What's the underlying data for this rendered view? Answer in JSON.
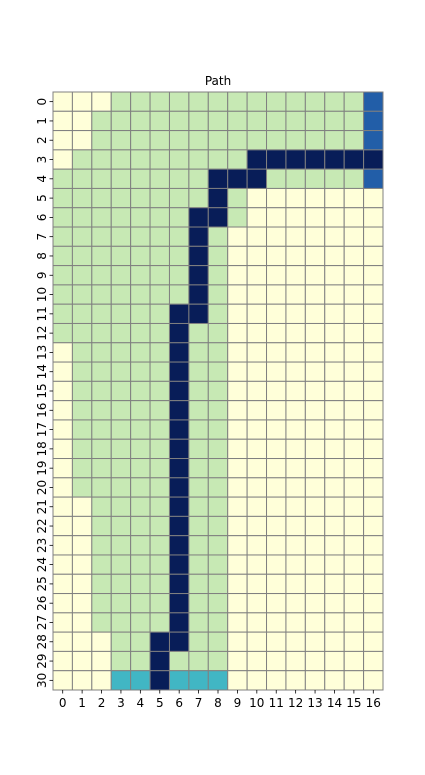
{
  "chart_data": {
    "type": "heatmap",
    "title": "Path",
    "xlabel": "",
    "ylabel": "",
    "x_tick_labels": [
      "0",
      "1",
      "2",
      "3",
      "4",
      "5",
      "6",
      "7",
      "8",
      "9",
      "10",
      "11",
      "12",
      "13",
      "14",
      "15",
      "16"
    ],
    "y_tick_labels": [
      "0",
      "1",
      "2",
      "3",
      "4",
      "5",
      "6",
      "7",
      "8",
      "9",
      "10",
      "11",
      "12",
      "13",
      "14",
      "15",
      "16",
      "17",
      "18",
      "19",
      "20",
      "21",
      "22",
      "23",
      "24",
      "25",
      "26",
      "27",
      "28",
      "29",
      "30"
    ],
    "colormap": "YlGnBu",
    "legend": "none",
    "grid_line_color": "#808080",
    "categories": {
      "0": {
        "meaning": "background",
        "color": "#ffffd9"
      },
      "1": {
        "meaning": "region",
        "color": "#c7e9b4"
      },
      "2": {
        "meaning": "row 30 marker",
        "color": "#41b6c4"
      },
      "3": {
        "meaning": "column 16 marker",
        "color": "#225ea8"
      },
      "4": {
        "meaning": "path",
        "color": "#081d58"
      }
    },
    "values": [
      [
        0,
        0,
        0,
        1,
        1,
        1,
        1,
        1,
        1,
        1,
        1,
        1,
        1,
        1,
        1,
        1,
        3
      ],
      [
        0,
        0,
        1,
        1,
        1,
        1,
        1,
        1,
        1,
        1,
        1,
        1,
        1,
        1,
        1,
        1,
        3
      ],
      [
        0,
        0,
        1,
        1,
        1,
        1,
        1,
        1,
        1,
        1,
        1,
        1,
        1,
        1,
        1,
        1,
        3
      ],
      [
        0,
        1,
        1,
        1,
        1,
        1,
        1,
        1,
        1,
        1,
        4,
        4,
        4,
        4,
        4,
        4,
        4
      ],
      [
        1,
        1,
        1,
        1,
        1,
        1,
        1,
        1,
        4,
        4,
        4,
        1,
        1,
        1,
        1,
        1,
        3
      ],
      [
        1,
        1,
        1,
        1,
        1,
        1,
        1,
        1,
        4,
        1,
        0,
        0,
        0,
        0,
        0,
        0,
        0
      ],
      [
        1,
        1,
        1,
        1,
        1,
        1,
        1,
        4,
        4,
        1,
        0,
        0,
        0,
        0,
        0,
        0,
        0
      ],
      [
        1,
        1,
        1,
        1,
        1,
        1,
        1,
        4,
        1,
        0,
        0,
        0,
        0,
        0,
        0,
        0,
        0
      ],
      [
        1,
        1,
        1,
        1,
        1,
        1,
        1,
        4,
        1,
        0,
        0,
        0,
        0,
        0,
        0,
        0,
        0
      ],
      [
        1,
        1,
        1,
        1,
        1,
        1,
        1,
        4,
        1,
        0,
        0,
        0,
        0,
        0,
        0,
        0,
        0
      ],
      [
        1,
        1,
        1,
        1,
        1,
        1,
        1,
        4,
        1,
        0,
        0,
        0,
        0,
        0,
        0,
        0,
        0
      ],
      [
        1,
        1,
        1,
        1,
        1,
        1,
        4,
        4,
        1,
        0,
        0,
        0,
        0,
        0,
        0,
        0,
        0
      ],
      [
        1,
        1,
        1,
        1,
        1,
        1,
        4,
        1,
        1,
        0,
        0,
        0,
        0,
        0,
        0,
        0,
        0
      ],
      [
        0,
        1,
        1,
        1,
        1,
        1,
        4,
        1,
        1,
        0,
        0,
        0,
        0,
        0,
        0,
        0,
        0
      ],
      [
        0,
        1,
        1,
        1,
        1,
        1,
        4,
        1,
        1,
        0,
        0,
        0,
        0,
        0,
        0,
        0,
        0
      ],
      [
        0,
        1,
        1,
        1,
        1,
        1,
        4,
        1,
        1,
        0,
        0,
        0,
        0,
        0,
        0,
        0,
        0
      ],
      [
        0,
        1,
        1,
        1,
        1,
        1,
        4,
        1,
        1,
        0,
        0,
        0,
        0,
        0,
        0,
        0,
        0
      ],
      [
        0,
        1,
        1,
        1,
        1,
        1,
        4,
        1,
        1,
        0,
        0,
        0,
        0,
        0,
        0,
        0,
        0
      ],
      [
        0,
        1,
        1,
        1,
        1,
        1,
        4,
        1,
        1,
        0,
        0,
        0,
        0,
        0,
        0,
        0,
        0
      ],
      [
        0,
        1,
        1,
        1,
        1,
        1,
        4,
        1,
        1,
        0,
        0,
        0,
        0,
        0,
        0,
        0,
        0
      ],
      [
        0,
        1,
        1,
        1,
        1,
        1,
        4,
        1,
        1,
        0,
        0,
        0,
        0,
        0,
        0,
        0,
        0
      ],
      [
        0,
        0,
        1,
        1,
        1,
        1,
        4,
        1,
        1,
        0,
        0,
        0,
        0,
        0,
        0,
        0,
        0
      ],
      [
        0,
        0,
        1,
        1,
        1,
        1,
        4,
        1,
        1,
        0,
        0,
        0,
        0,
        0,
        0,
        0,
        0
      ],
      [
        0,
        0,
        1,
        1,
        1,
        1,
        4,
        1,
        1,
        0,
        0,
        0,
        0,
        0,
        0,
        0,
        0
      ],
      [
        0,
        0,
        1,
        1,
        1,
        1,
        4,
        1,
        1,
        0,
        0,
        0,
        0,
        0,
        0,
        0,
        0
      ],
      [
        0,
        0,
        1,
        1,
        1,
        1,
        4,
        1,
        1,
        0,
        0,
        0,
        0,
        0,
        0,
        0,
        0
      ],
      [
        0,
        0,
        1,
        1,
        1,
        1,
        4,
        1,
        1,
        0,
        0,
        0,
        0,
        0,
        0,
        0,
        0
      ],
      [
        0,
        0,
        1,
        1,
        1,
        1,
        4,
        1,
        1,
        0,
        0,
        0,
        0,
        0,
        0,
        0,
        0
      ],
      [
        0,
        0,
        0,
        1,
        1,
        4,
        4,
        1,
        1,
        0,
        0,
        0,
        0,
        0,
        0,
        0,
        0
      ],
      [
        0,
        0,
        0,
        1,
        1,
        4,
        1,
        1,
        1,
        0,
        0,
        0,
        0,
        0,
        0,
        0,
        0
      ],
      [
        0,
        0,
        0,
        2,
        2,
        4,
        2,
        2,
        2,
        0,
        0,
        0,
        0,
        0,
        0,
        0,
        0
      ]
    ]
  }
}
